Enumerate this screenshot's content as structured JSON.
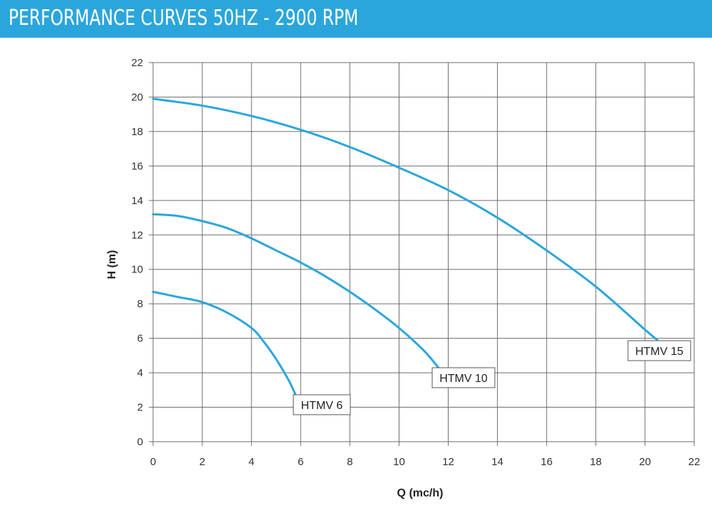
{
  "header": {
    "title": "PERFORMANCE CURVES 50HZ - 2900 RPM",
    "background_color": "#2ba6dc"
  },
  "chart_data": {
    "type": "line",
    "title": "",
    "xlabel": "Q (mc/h)",
    "ylabel": "H (m)",
    "xlim": [
      0,
      22
    ],
    "ylim": [
      0,
      22
    ],
    "xticks": [
      0,
      2,
      4,
      6,
      8,
      10,
      12,
      14,
      16,
      18,
      20,
      22
    ],
    "yticks": [
      0,
      2,
      4,
      6,
      8,
      10,
      12,
      14,
      16,
      18,
      20,
      22
    ],
    "grid": true,
    "line_color": "#2ba6dc",
    "series": [
      {
        "name": "HTMV 6",
        "x": [
          0,
          1,
          2,
          3,
          4,
          4.5,
          5,
          5.5,
          5.8
        ],
        "y": [
          8.7,
          8.4,
          8.1,
          7.5,
          6.6,
          5.8,
          4.8,
          3.6,
          2.7
        ]
      },
      {
        "name": "HTMV 10",
        "x": [
          0,
          1,
          2,
          3,
          4,
          5,
          6,
          7,
          8,
          9,
          10,
          11,
          11.6
        ],
        "y": [
          13.2,
          13.1,
          12.8,
          12.4,
          11.8,
          11.1,
          10.4,
          9.6,
          8.7,
          7.7,
          6.6,
          5.3,
          4.3
        ]
      },
      {
        "name": "HTMV 15",
        "x": [
          0,
          2,
          4,
          6,
          8,
          10,
          12,
          14,
          16,
          18,
          20,
          20.5
        ],
        "y": [
          19.9,
          19.5,
          18.9,
          18.1,
          17.1,
          15.9,
          14.6,
          13.0,
          11.1,
          9.0,
          6.5,
          5.9
        ]
      }
    ]
  }
}
